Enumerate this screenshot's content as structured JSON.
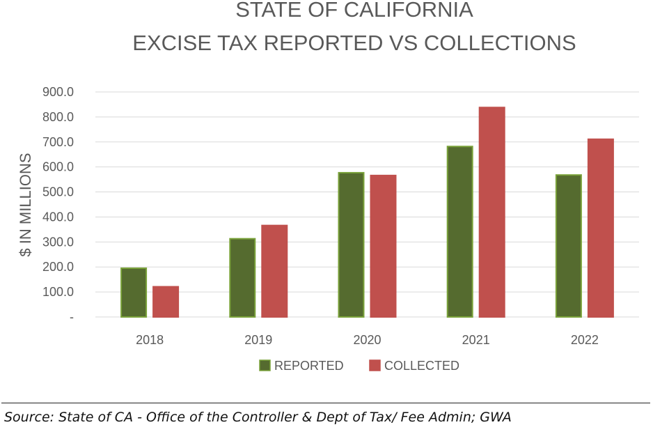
{
  "chart_data": {
    "type": "bar",
    "title": [
      "STATE OF CALIFORNIA",
      "EXCISE TAX REPORTED VS COLLECTIONS"
    ],
    "ylabel": "$ IN MILLIONS",
    "xlabel": "",
    "ylim": [
      0,
      900
    ],
    "yticks": [
      "-",
      "100.0",
      "200.0",
      "300.0",
      "400.0",
      "500.0",
      "600.0",
      "700.0",
      "800.0",
      "900.0"
    ],
    "categories": [
      "2018",
      "2019",
      "2020",
      "2021",
      "2022"
    ],
    "series": [
      {
        "name": "REPORTED",
        "color": "#556b2f",
        "border": "#7aa23a",
        "values": [
          195,
          313,
          577,
          682,
          568
        ]
      },
      {
        "name": "COLLECTED",
        "color": "#c0504d",
        "border": "#c0504d",
        "values": [
          121,
          366,
          566,
          838,
          711
        ]
      }
    ],
    "grid": true,
    "legend": "bottom"
  },
  "source": "Source: State of CA -  Office of the Controller &  Dept of Tax/ Fee Admin; GWA"
}
